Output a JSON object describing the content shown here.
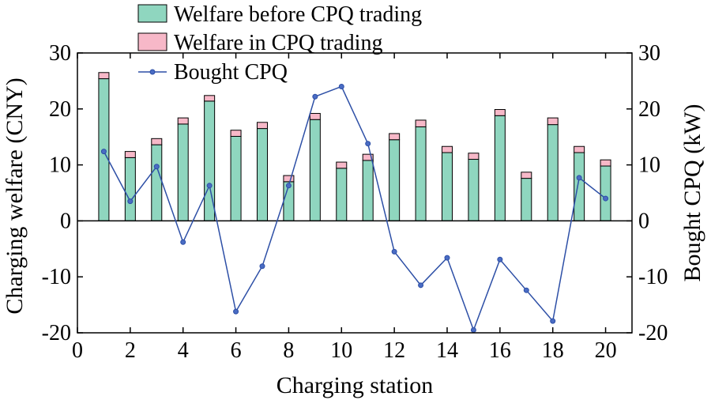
{
  "chart_data": {
    "type": "bar",
    "xlabel": "Charging station",
    "ylabel": "Charging welfare (CNY)",
    "y2label": "Bought CPQ (kW)",
    "xlim": [
      0,
      21
    ],
    "ylim": [
      -20,
      30
    ],
    "y2lim": [
      -20,
      30
    ],
    "x_ticks": [
      0,
      2,
      4,
      6,
      8,
      10,
      12,
      14,
      16,
      18,
      20
    ],
    "y_ticks": [
      -20,
      -10,
      0,
      10,
      20,
      30
    ],
    "y2_ticks": [
      -20,
      -10,
      0,
      10,
      20,
      30
    ],
    "x": [
      1,
      2,
      3,
      4,
      5,
      6,
      7,
      8,
      9,
      10,
      11,
      12,
      13,
      14,
      15,
      16,
      17,
      18,
      19,
      20
    ],
    "series": [
      {
        "name": "Welfare before CPQ trading",
        "kind": "stacked-bar",
        "color": "#8fd6bf",
        "values": [
          25.4,
          11.3,
          13.6,
          17.3,
          21.4,
          15.1,
          16.5,
          7.0,
          18.1,
          9.4,
          10.8,
          14.5,
          16.8,
          12.2,
          11.0,
          18.8,
          7.6,
          17.2,
          12.2,
          9.8
        ]
      },
      {
        "name": "Welfare in CPQ trading",
        "kind": "stacked-bar",
        "color": "#f7b8c8",
        "values": [
          1.1,
          1.1,
          1.1,
          1.1,
          1.0,
          1.1,
          1.1,
          1.1,
          1.1,
          1.1,
          1.1,
          1.1,
          1.2,
          1.1,
          1.1,
          1.1,
          1.1,
          1.2,
          1.1,
          1.1
        ]
      },
      {
        "name": "Bought CPQ",
        "kind": "line",
        "axis": "right",
        "color": "#2d4fa6",
        "values": [
          12.4,
          3.5,
          9.7,
          -3.8,
          6.3,
          -16.2,
          -8.1,
          6.3,
          22.2,
          24.0,
          13.8,
          -5.5,
          -11.5,
          -6.6,
          -19.5,
          -6.9,
          -12.4,
          -17.9,
          7.7,
          4.0
        ]
      }
    ],
    "legend_position": "top-center",
    "grid": false
  }
}
